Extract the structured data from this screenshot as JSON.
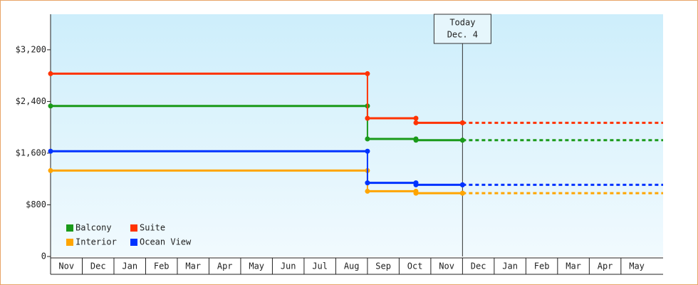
{
  "chart_data": {
    "type": "step",
    "categories": [
      "Nov",
      "Dec",
      "Jan",
      "Feb",
      "Mar",
      "Apr",
      "May",
      "Jun",
      "Jul",
      "Aug",
      "Sep",
      "Oct",
      "Nov",
      "Dec",
      "Jan",
      "Feb",
      "Mar",
      "Apr",
      "May"
    ],
    "xlim": [
      0,
      19.33
    ],
    "ylim": [
      0,
      3750
    ],
    "yticks": [
      0,
      {
        "value": 800,
        "label": "$800"
      },
      {
        "value": 1600,
        "label": "$1,600"
      },
      {
        "value": 2400,
        "label": "$2,400"
      },
      {
        "value": 3200,
        "label": "$3,200"
      }
    ],
    "series": [
      {
        "name": "Balcony",
        "color": "#1a9a1a",
        "x": [
          0,
          10,
          11.53,
          13
        ],
        "values": [
          2330,
          1820,
          1800,
          1800
        ]
      },
      {
        "name": "Suite",
        "color": "#ff3300",
        "x": [
          0,
          10,
          11.53,
          13
        ],
        "values": [
          2830,
          2140,
          2070,
          2070
        ]
      },
      {
        "name": "Interior",
        "color": "#ffa500",
        "x": [
          0,
          10,
          11.53,
          13
        ],
        "values": [
          1330,
          1010,
          980,
          980
        ]
      },
      {
        "name": "Ocean View",
        "color": "#0033ff",
        "x": [
          0,
          10,
          11.53,
          13
        ],
        "values": [
          1630,
          1140,
          1110,
          1110
        ]
      }
    ],
    "annotation": {
      "x": 13,
      "lines": [
        "Today",
        "Dec. 4"
      ]
    }
  }
}
